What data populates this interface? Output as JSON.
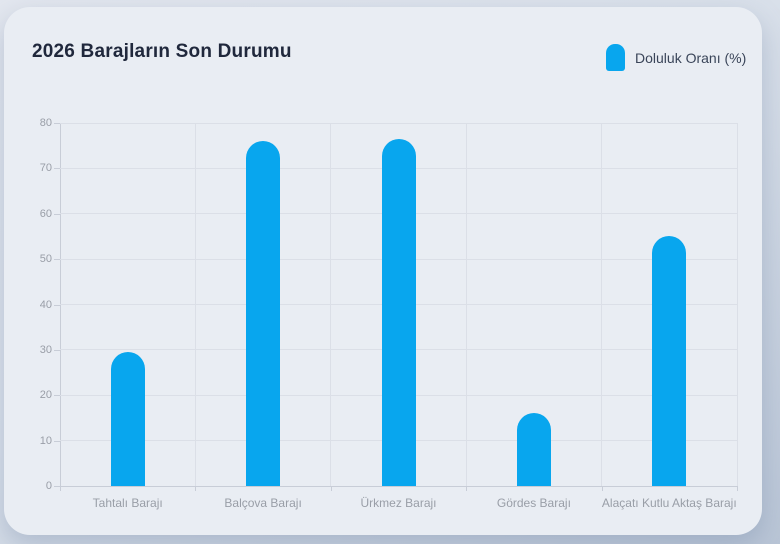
{
  "header": {
    "title": "2026 Barajların Son Durumu"
  },
  "legend": {
    "label": "Doluluk Oranı (%)"
  },
  "colors": {
    "bar": "#08a6ee",
    "title_text": "#20283c",
    "axis_text": "#999ea7"
  },
  "chart_data": {
    "type": "bar",
    "title": "2026 Barajların Son Durumu",
    "series_label": "Doluluk Oranı (%)",
    "categories": [
      "Tahtalı Barajı",
      "Balçova Barajı",
      "Ürkmez Barajı",
      "Gördes Barajı",
      "Alaçatı Kutlu Aktaş Barajı"
    ],
    "values": [
      29.6,
      76.1,
      76.5,
      16,
      55.2
    ],
    "xlabel": "",
    "ylabel": "",
    "ylim": [
      0,
      80
    ],
    "ytick_step": 10,
    "grid": true,
    "legend_position": "top-right",
    "bar_color": "#08a6ee"
  }
}
